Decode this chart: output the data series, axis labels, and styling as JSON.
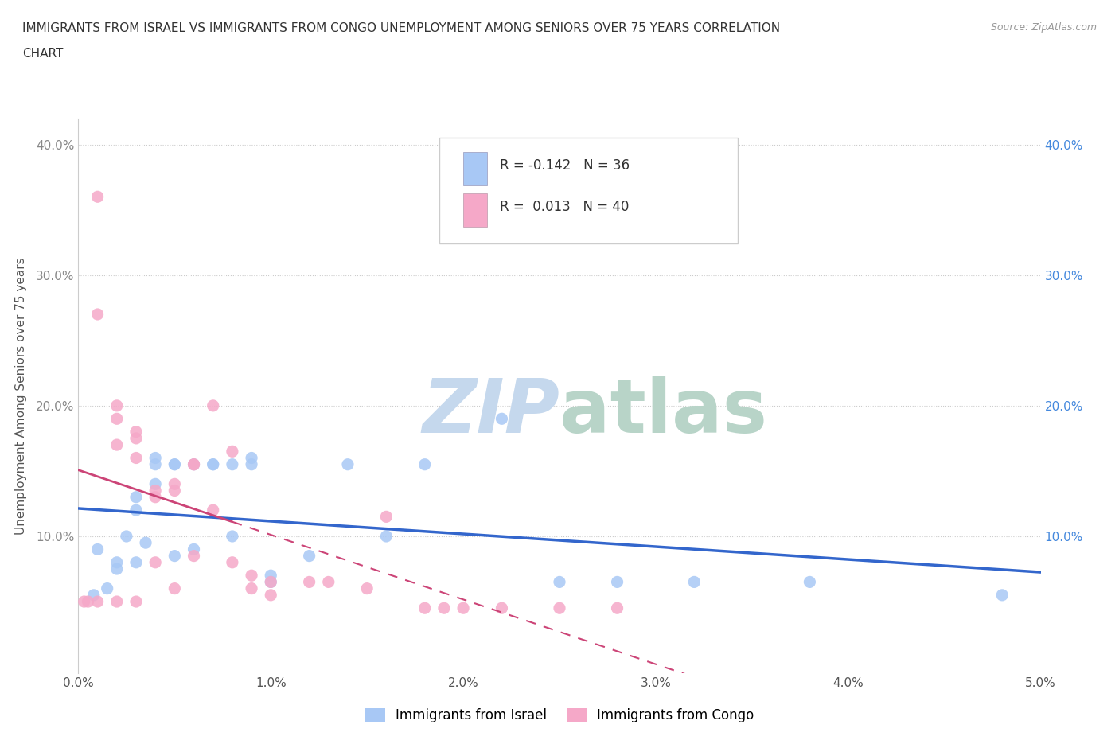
{
  "title_line1": "IMMIGRANTS FROM ISRAEL VS IMMIGRANTS FROM CONGO UNEMPLOYMENT AMONG SENIORS OVER 75 YEARS CORRELATION",
  "title_line2": "CHART",
  "source": "Source: ZipAtlas.com",
  "ylabel": "Unemployment Among Seniors over 75 years",
  "x_tick_labels": [
    "0.0%",
    "1.0%",
    "2.0%",
    "3.0%",
    "4.0%",
    "5.0%"
  ],
  "xlim": [
    0.0,
    0.05
  ],
  "ylim": [
    -0.005,
    0.42
  ],
  "legend_r_israel": "-0.142",
  "legend_n_israel": "36",
  "legend_r_congo": "0.013",
  "legend_n_congo": "40",
  "color_israel": "#a8c8f5",
  "color_congo": "#f5a8c8",
  "color_israel_line": "#3366cc",
  "color_congo_line": "#cc4477",
  "watermark_zip": "ZIP",
  "watermark_atlas": "atlas",
  "watermark_color_zip": "#c8ddf0",
  "watermark_color_atlas": "#c8ddf0",
  "israel_x": [
    0.0008,
    0.001,
    0.0015,
    0.002,
    0.002,
    0.0025,
    0.003,
    0.003,
    0.003,
    0.0035,
    0.004,
    0.004,
    0.004,
    0.005,
    0.005,
    0.005,
    0.006,
    0.006,
    0.007,
    0.007,
    0.008,
    0.008,
    0.009,
    0.009,
    0.01,
    0.01,
    0.012,
    0.014,
    0.016,
    0.018,
    0.022,
    0.025,
    0.028,
    0.032,
    0.038,
    0.048
  ],
  "israel_y": [
    0.055,
    0.09,
    0.06,
    0.08,
    0.075,
    0.1,
    0.08,
    0.13,
    0.12,
    0.095,
    0.16,
    0.155,
    0.14,
    0.155,
    0.155,
    0.085,
    0.155,
    0.09,
    0.155,
    0.155,
    0.1,
    0.155,
    0.16,
    0.155,
    0.065,
    0.07,
    0.085,
    0.155,
    0.1,
    0.155,
    0.19,
    0.065,
    0.065,
    0.065,
    0.065,
    0.055
  ],
  "congo_x": [
    0.0003,
    0.0005,
    0.001,
    0.001,
    0.001,
    0.002,
    0.002,
    0.002,
    0.002,
    0.003,
    0.003,
    0.003,
    0.003,
    0.004,
    0.004,
    0.004,
    0.005,
    0.005,
    0.005,
    0.006,
    0.006,
    0.006,
    0.007,
    0.007,
    0.008,
    0.008,
    0.009,
    0.009,
    0.01,
    0.01,
    0.012,
    0.013,
    0.015,
    0.016,
    0.018,
    0.019,
    0.02,
    0.022,
    0.025,
    0.028
  ],
  "congo_y": [
    0.05,
    0.05,
    0.36,
    0.27,
    0.05,
    0.2,
    0.19,
    0.17,
    0.05,
    0.18,
    0.175,
    0.16,
    0.05,
    0.135,
    0.13,
    0.08,
    0.14,
    0.135,
    0.06,
    0.155,
    0.155,
    0.085,
    0.2,
    0.12,
    0.165,
    0.08,
    0.07,
    0.06,
    0.065,
    0.055,
    0.065,
    0.065,
    0.06,
    0.115,
    0.045,
    0.045,
    0.045,
    0.045,
    0.045,
    0.045
  ]
}
